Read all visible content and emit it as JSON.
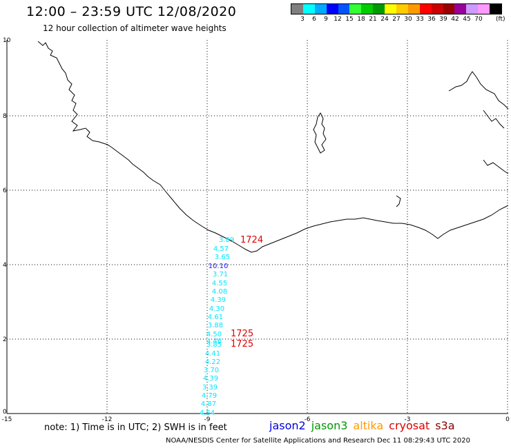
{
  "header": {
    "title": "12:00 – 23:59 UTC 12/08/2020",
    "subtitle": "12 hour collection of altimeter wave heights"
  },
  "legend": {
    "colors": [
      "#7f7f7f",
      "#00ffff",
      "#00aaff",
      "#0000ff",
      "#0055ff",
      "#33ff33",
      "#00cc00",
      "#009900",
      "#ffff00",
      "#ffcc00",
      "#ff9900",
      "#ff0000",
      "#cc0000",
      "#990000",
      "#990099",
      "#cc99ff",
      "#ff99ff",
      "#000000"
    ],
    "labels": [
      "3",
      "6",
      "9",
      "12",
      "15",
      "18",
      "21",
      "24",
      "27",
      "30",
      "33",
      "36",
      "39",
      "42",
      "45",
      "70"
    ],
    "unit": "(ft)"
  },
  "axes": {
    "y_labels": [
      "10",
      "8",
      "6",
      "4",
      "2",
      "0"
    ],
    "x_labels": [
      "-15",
      "-12",
      "-9",
      "-6",
      "-3",
      "0"
    ]
  },
  "observations": {
    "wave_heights": [
      {
        "value": "3.89",
        "color": "#00e5ff"
      },
      {
        "value": "4.57",
        "color": "#00e5ff"
      },
      {
        "value": "3.65",
        "color": "#00e5ff"
      },
      {
        "value": "10.10",
        "color": "#1a1aff"
      },
      {
        "value": "3.71",
        "color": "#00e5ff"
      },
      {
        "value": "4.55",
        "color": "#00e5ff"
      },
      {
        "value": "4.08",
        "color": "#00e5ff"
      },
      {
        "value": "4.39",
        "color": "#00e5ff"
      },
      {
        "value": "4.30",
        "color": "#00e5ff"
      },
      {
        "value": "4.61",
        "color": "#00e5ff"
      },
      {
        "value": "3.88",
        "color": "#00e5ff"
      },
      {
        "value": "4.50",
        "color": "#00e5ff"
      },
      {
        "value": "4.46",
        "color": "#00e5ff"
      },
      {
        "value": "3.85",
        "color": "#00e5ff"
      },
      {
        "value": "4.41",
        "color": "#00e5ff"
      },
      {
        "value": "4.22",
        "color": "#00e5ff"
      },
      {
        "value": "3.70",
        "color": "#00e5ff"
      },
      {
        "value": "4.39",
        "color": "#00e5ff"
      },
      {
        "value": "3.39",
        "color": "#00e5ff"
      },
      {
        "value": "4.79",
        "color": "#00e5ff"
      },
      {
        "value": "4.87",
        "color": "#00e5ff"
      },
      {
        "value": "4.54",
        "color": "#00e5ff"
      }
    ],
    "times": [
      {
        "value": "1724",
        "color": "#dd0000"
      },
      {
        "value": "1725",
        "color": "#dd0000"
      },
      {
        "value": "1725",
        "color": "#dd0000"
      }
    ]
  },
  "note": "note: 1) Time is in UTC; 2) SWH is in feet",
  "satellites": [
    {
      "name": "jason2",
      "color": "#0000dd"
    },
    {
      "name": "jason3",
      "color": "#009900"
    },
    {
      "name": "altika",
      "color": "#ff9900"
    },
    {
      "name": "cryosat",
      "color": "#dd0000"
    },
    {
      "name": "s3a",
      "color": "#880000"
    }
  ],
  "footer": "NOAA/NESDIS Center for Satellite Applications and Research     Dec 11 08:29:43 UTC 2020"
}
